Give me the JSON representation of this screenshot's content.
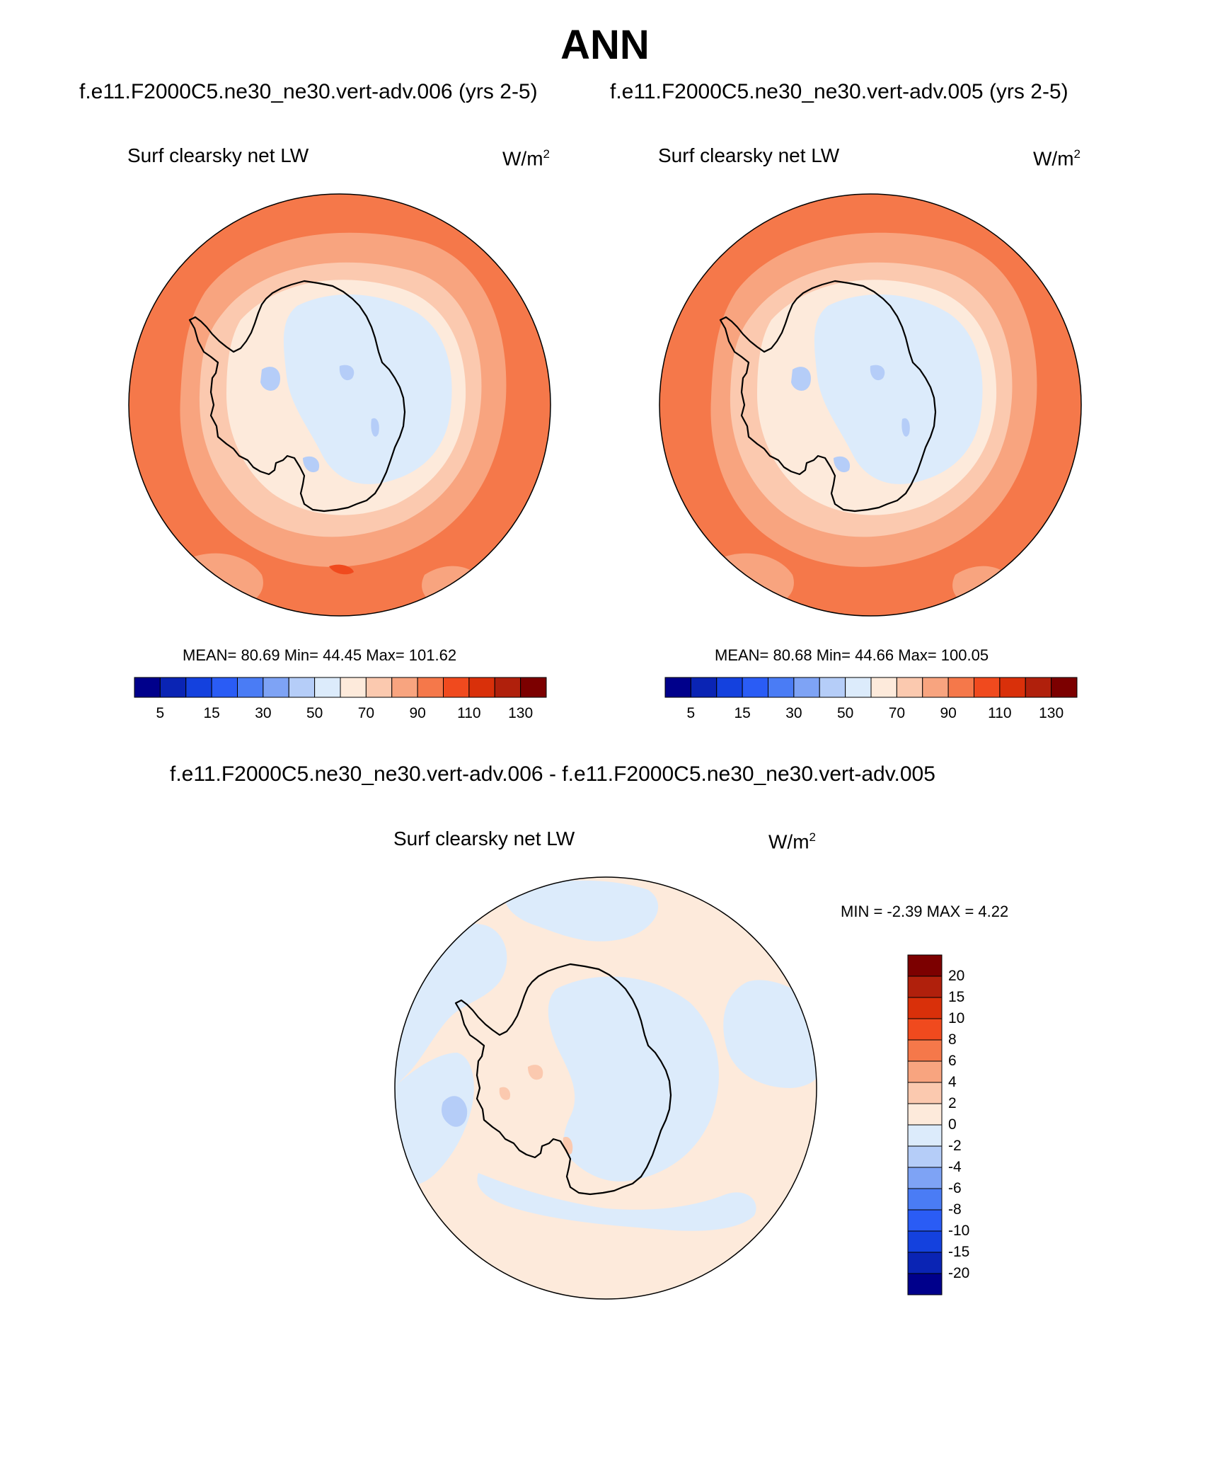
{
  "title": "ANN",
  "panels": [
    {
      "case_title": "f.e11.F2000C5.ne30_ne30.vert-adv.006 (yrs 2-5)",
      "variable": "Surf clearsky net LW",
      "units_base": "W/m",
      "units_exp": "2",
      "stats": "MEAN=  80.69  Min=  44.45  Max= 101.62",
      "colorbar_labels": [
        "5",
        "15",
        "30",
        "50",
        "70",
        "90",
        "110",
        "130"
      ]
    },
    {
      "case_title": "f.e11.F2000C5.ne30_ne30.vert-adv.005 (yrs 2-5)",
      "variable": "Surf clearsky net LW",
      "units_base": "W/m",
      "units_exp": "2",
      "stats": "MEAN=  80.68  Min=  44.66  Max= 100.05",
      "colorbar_labels": [
        "5",
        "15",
        "30",
        "50",
        "70",
        "90",
        "110",
        "130"
      ]
    }
  ],
  "diff": {
    "title": "f.e11.F2000C5.ne30_ne30.vert-adv.006 - f.e11.F2000C5.ne30_ne30.vert-adv.005",
    "variable": "Surf clearsky net LW",
    "units_base": "W/m",
    "units_exp": "2",
    "stats": "MIN =  -2.39 MAX =   4.22",
    "colorbar_labels": [
      "20",
      "15",
      "10",
      "8",
      "6",
      "4",
      "2",
      "0",
      "-2",
      "-4",
      "-6",
      "-8",
      "-10",
      "-15",
      "-20"
    ]
  },
  "colors": {
    "abs_scale": [
      "#00008b",
      "#0a24b4",
      "#1441de",
      "#2a5cf5",
      "#4a7cf5",
      "#7ea3f5",
      "#b5cdf8",
      "#dcebfb",
      "#fdeadb",
      "#fbc9af",
      "#f8a47f",
      "#f5784a",
      "#f04a1e",
      "#d9300a",
      "#b0200c",
      "#7c0000"
    ],
    "diff_scale": [
      "#7c0000",
      "#b0200c",
      "#d9300a",
      "#f04a1e",
      "#f5784a",
      "#f8a47f",
      "#fbc9af",
      "#fdeadb",
      "#dcebfb",
      "#b5cdf8",
      "#7ea3f5",
      "#4a7cf5",
      "#2a5cf5",
      "#1441de",
      "#0a24b4",
      "#00008b"
    ],
    "ocean_main": "#f5784a",
    "ring_90": "#f8a47f",
    "ring_80": "#fbc9af",
    "coast_70": "#fdeadb",
    "interior_60": "#dcebfb",
    "low_50": "#b5cdf8",
    "hot_110": "#f04a1e",
    "diff_pos": "#fdeadb",
    "diff_neg": "#dcebfb",
    "diff_pos2": "#fbc9af",
    "diff_neg2": "#b5cdf8"
  }
}
